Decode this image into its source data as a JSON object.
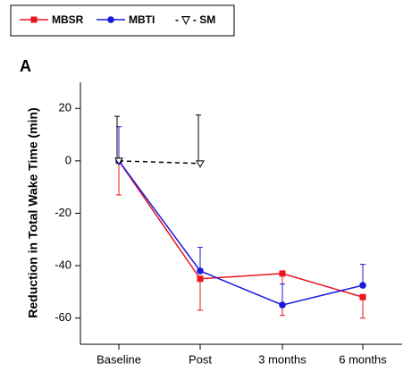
{
  "chart_data": {
    "type": "line",
    "panel_label": "A",
    "ylabel": "Reduction in Total Wake Time (min)",
    "categories": [
      "Baseline",
      "Post",
      "3 months",
      "6 months"
    ],
    "ylim": [
      -70,
      30
    ],
    "yticks": [
      -60,
      -40,
      -20,
      0,
      20
    ],
    "legend": "top-left",
    "series": [
      {
        "name": "MBSR",
        "color": "#e8141e",
        "marker": "square",
        "dash": "solid",
        "error_direction": "down",
        "values": [
          0,
          -45,
          -43,
          -52
        ],
        "errors": [
          13,
          12,
          16,
          8
        ]
      },
      {
        "name": "MBTI",
        "color": "#1a1adc",
        "marker": "circle",
        "dash": "solid",
        "error_direction": "up",
        "values": [
          0,
          -42,
          -55,
          -47.5
        ],
        "errors": [
          13,
          9,
          8,
          8
        ]
      },
      {
        "name": "- ▽ - SM",
        "color": "#000000",
        "marker": "triangle-down",
        "dash": "dashed",
        "error_direction": "up",
        "values": [
          0,
          -1,
          null,
          null
        ],
        "errors": [
          17,
          18.5,
          null,
          null
        ]
      }
    ]
  }
}
